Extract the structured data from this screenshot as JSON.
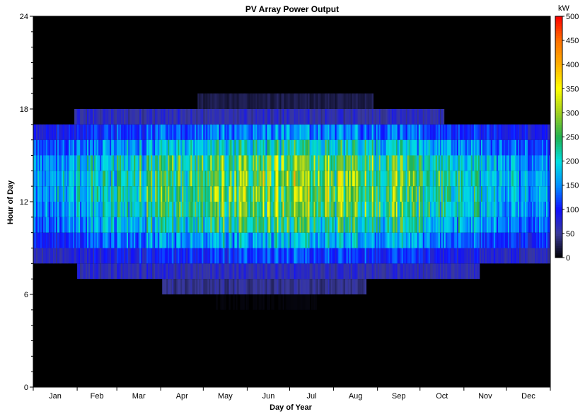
{
  "chart_data": {
    "type": "heatmap",
    "title": "PV Array Power Output",
    "xlabel": "Day of Year",
    "ylabel": "Hour of Day",
    "x_range": [
      1,
      365
    ],
    "ylim": [
      0,
      24
    ],
    "y_ticks": [
      "0",
      "6",
      "12",
      "18",
      "24"
    ],
    "months": [
      "Jan",
      "Feb",
      "Mar",
      "Apr",
      "May",
      "Jun",
      "Jul",
      "Aug",
      "Sep",
      "Oct",
      "Nov",
      "Dec"
    ],
    "colorbar": {
      "unit": "kW",
      "min": 0,
      "max": 500,
      "ticks": [
        "0",
        "50",
        "100",
        "150",
        "200",
        "250",
        "300",
        "350",
        "400",
        "450",
        "500"
      ],
      "colors": [
        "#000000",
        "#3a3a9a",
        "#1010ff",
        "#0090ff",
        "#00e0e0",
        "#20b050",
        "#a0d020",
        "#ffff00",
        "#ffb000",
        "#ff7000",
        "#ff0000"
      ]
    },
    "typical_output_kw_by_hour": [
      {
        "hour": 5,
        "kw": 5
      },
      {
        "hour": 6,
        "kw": 60
      },
      {
        "hour": 7,
        "kw": 85
      },
      {
        "hour": 8,
        "kw": 150
      },
      {
        "hour": 9,
        "kw": 230
      },
      {
        "hour": 10,
        "kw": 300
      },
      {
        "hour": 11,
        "kw": 340
      },
      {
        "hour": 12,
        "kw": 360
      },
      {
        "hour": 13,
        "kw": 360
      },
      {
        "hour": 14,
        "kw": 340
      },
      {
        "hour": 15,
        "kw": 270
      },
      {
        "hour": 16,
        "kw": 190
      },
      {
        "hour": 17,
        "kw": 80
      },
      {
        "hour": 18,
        "kw": 30
      }
    ],
    "grid": false
  }
}
